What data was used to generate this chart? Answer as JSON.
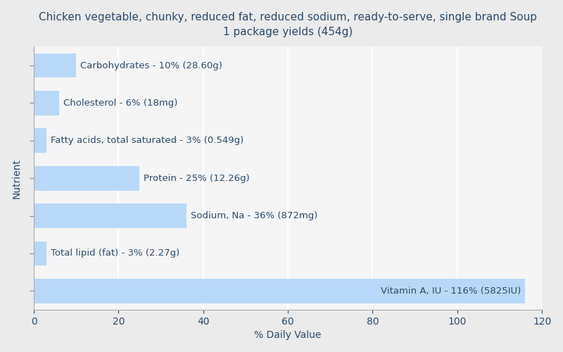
{
  "title": "Chicken vegetable, chunky, reduced fat, reduced sodium, ready-to-serve, single brand Soup\n1 package yields (454g)",
  "xlabel": "% Daily Value",
  "ylabel": "Nutrient",
  "background_color": "#ebebeb",
  "plot_background_color": "#f5f5f5",
  "bar_color": "#b8d8f8",
  "bar_edge_color": "none",
  "label_color": "#2a4a6a",
  "grid_color": "#ffffff",
  "nutrients_top_to_bottom": [
    "Carbohydrates",
    "Cholesterol",
    "Fatty acids, total saturated",
    "Protein",
    "Sodium, Na",
    "Total lipid (fat)",
    "Vitamin A, IU"
  ],
  "values_top_to_bottom": [
    10,
    6,
    3,
    25,
    36,
    3,
    116
  ],
  "labels_top_to_bottom": [
    "Carbohydrates - 10% (28.60g)",
    "Cholesterol - 6% (18mg)",
    "Fatty acids, total saturated - 3% (0.549g)",
    "Protein - 25% (12.26g)",
    "Sodium, Na - 36% (872mg)",
    "Total lipid (fat) - 3% (2.27g)",
    "Vitamin A, IU - 116% (5825IU)"
  ],
  "xlim": [
    0,
    120
  ],
  "xticks": [
    0,
    20,
    40,
    60,
    80,
    100,
    120
  ],
  "title_fontsize": 11,
  "label_fontsize": 9.5,
  "axis_fontsize": 10,
  "bar_height": 0.65
}
